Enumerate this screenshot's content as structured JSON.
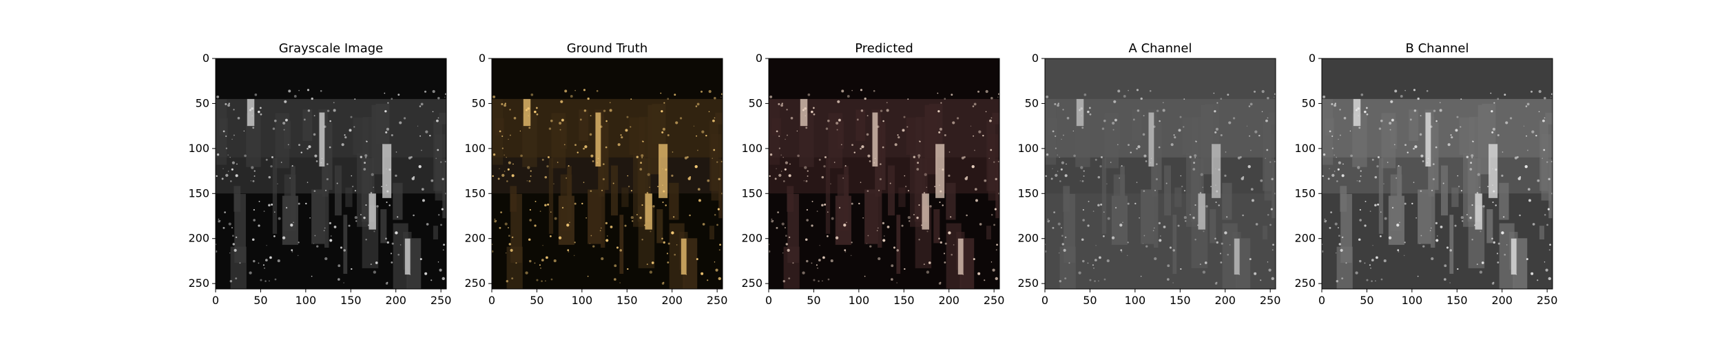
{
  "chart_data": [
    {
      "type": "image",
      "title": "Grayscale Image",
      "xlim": [
        0,
        256
      ],
      "ylim": [
        256,
        0
      ],
      "xticks": [
        0,
        50,
        100,
        150,
        200,
        250
      ],
      "yticks": [
        0,
        50,
        100,
        150,
        200,
        250
      ],
      "colors": {
        "sky": "#0b0b0b",
        "city_mid": "#3a3a3a",
        "highlight": "#e6e6e6",
        "water": "#2a2a2a"
      }
    },
    {
      "type": "image",
      "title": "Ground Truth",
      "xlim": [
        0,
        256
      ],
      "ylim": [
        256,
        0
      ],
      "xticks": [
        0,
        50,
        100,
        150,
        200,
        250
      ],
      "yticks": [
        0,
        50,
        100,
        150,
        200,
        250
      ],
      "colors": {
        "sky": "#0c0904",
        "city_mid": "#3b2a14",
        "highlight": "#ffd27a",
        "water": "#211a12"
      }
    },
    {
      "type": "image",
      "title": "Predicted",
      "xlim": [
        0,
        256
      ],
      "ylim": [
        256,
        0
      ],
      "xticks": [
        0,
        50,
        100,
        150,
        200,
        250
      ],
      "yticks": [
        0,
        50,
        100,
        150,
        200,
        250
      ],
      "colors": {
        "sky": "#0d0707",
        "city_mid": "#3b2424",
        "highlight": "#f1d9c8",
        "water": "#2a1818"
      }
    },
    {
      "type": "image",
      "title": "A Channel",
      "xlim": [
        0,
        256
      ],
      "ylim": [
        256,
        0
      ],
      "xticks": [
        0,
        50,
        100,
        150,
        200,
        250
      ],
      "yticks": [
        0,
        50,
        100,
        150,
        200,
        250
      ],
      "colors": {
        "sky": "#4a4a4a",
        "city_mid": "#5a5a5a",
        "highlight": "#cfcfcf",
        "water": "#444444"
      }
    },
    {
      "type": "image",
      "title": "B Channel",
      "xlim": [
        0,
        256
      ],
      "ylim": [
        256,
        0
      ],
      "xticks": [
        0,
        50,
        100,
        150,
        200,
        250
      ],
      "yticks": [
        0,
        50,
        100,
        150,
        200,
        250
      ],
      "colors": {
        "sky": "#3e3e3e",
        "city_mid": "#6f6f6f",
        "highlight": "#eeeeee",
        "water": "#555555"
      }
    }
  ]
}
